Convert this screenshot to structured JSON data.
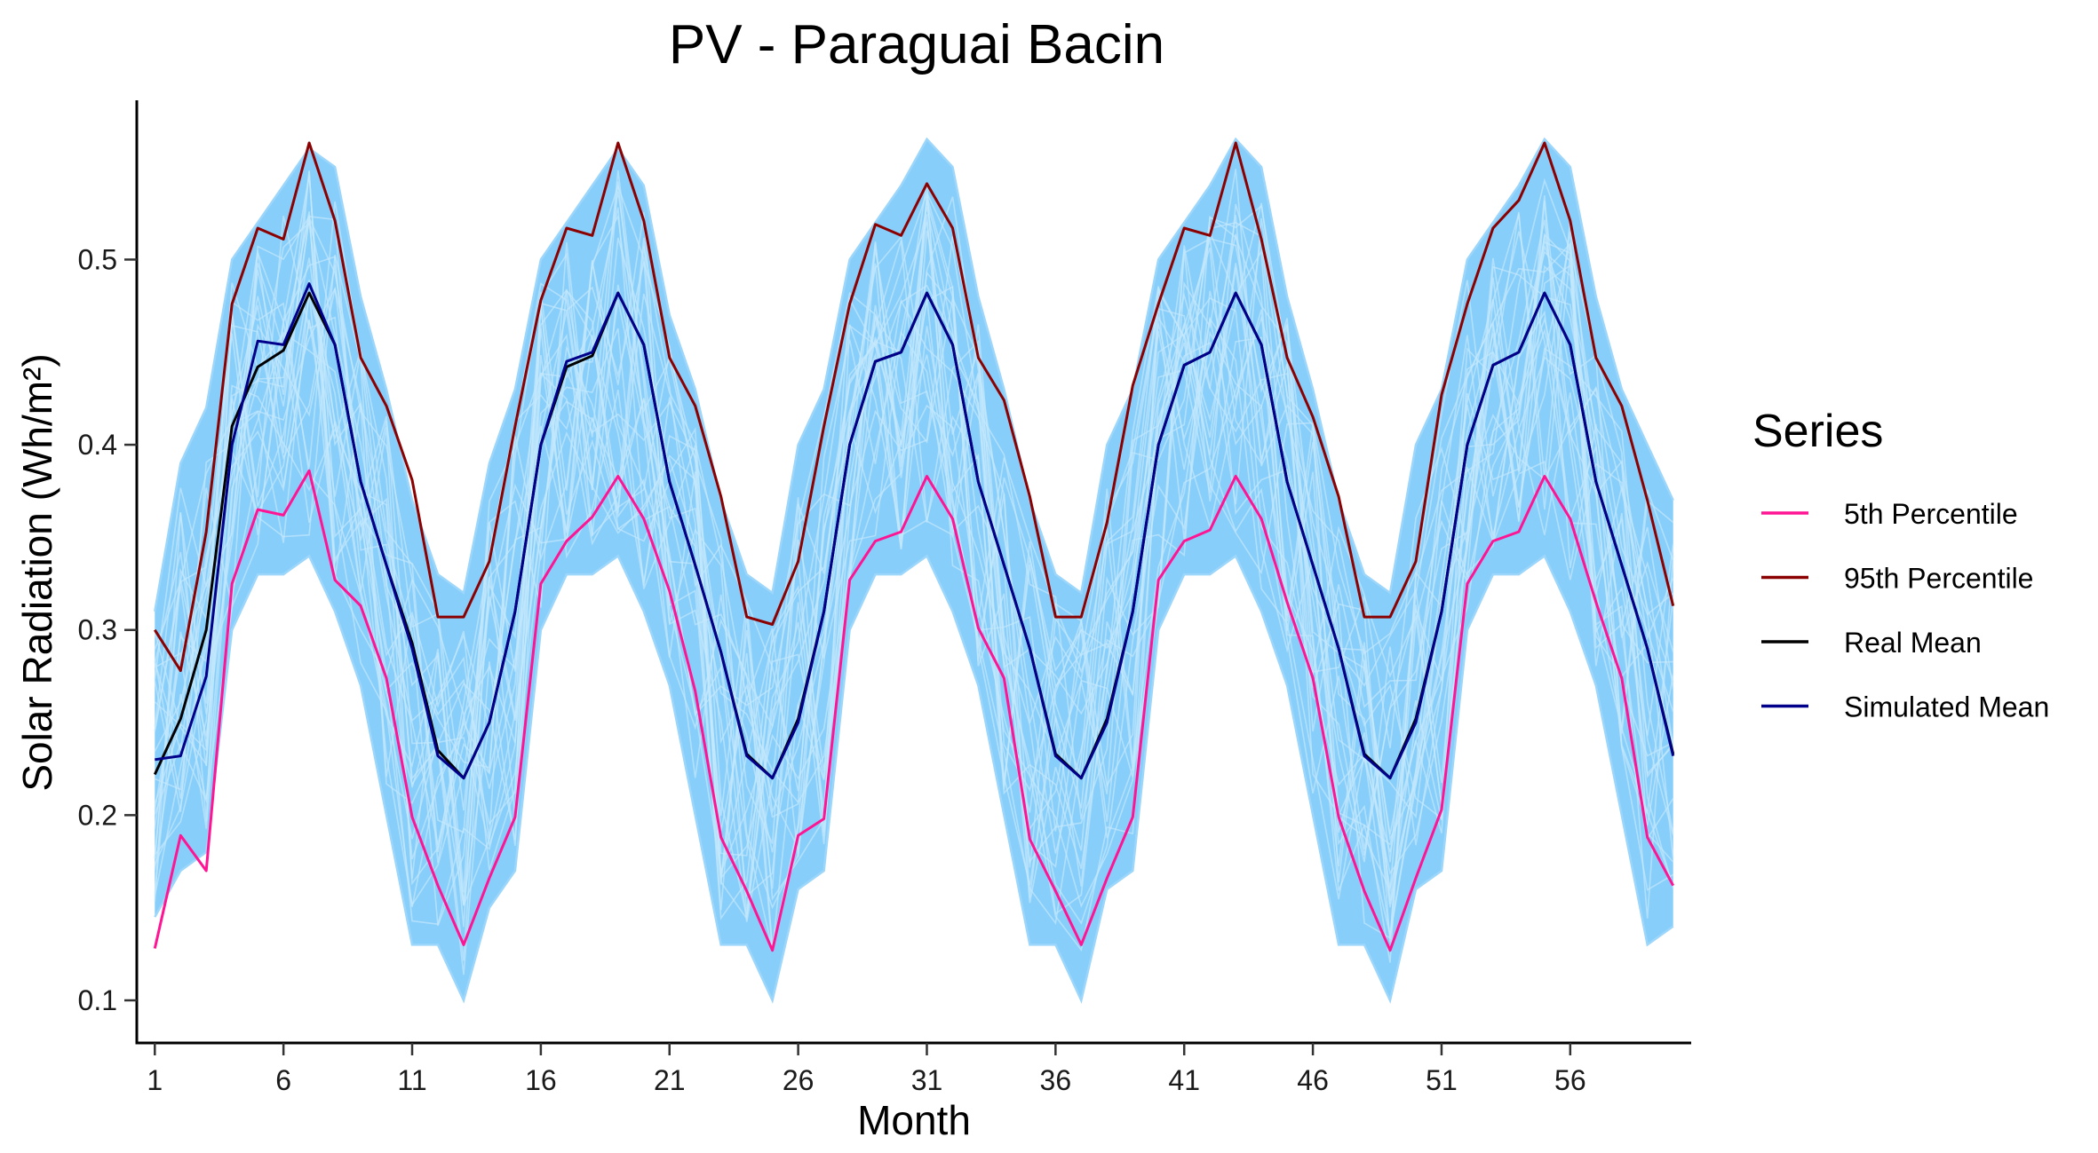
{
  "chart_data": {
    "type": "line",
    "title": "PV - Paraguai Bacin",
    "xlabel": "Month",
    "ylabel": "Solar Radiation (Wh/m²)",
    "xlim": [
      0.3,
      60.7
    ],
    "ylim": [
      0.077,
      0.586
    ],
    "x_ticks": [
      1,
      6,
      11,
      16,
      21,
      26,
      31,
      36,
      41,
      46,
      51,
      56
    ],
    "y_ticks": [
      0.1,
      0.2,
      0.3,
      0.4,
      0.5
    ],
    "y_tick_labels": [
      "0.1",
      "0.2",
      "0.3",
      "0.4",
      "0.5"
    ],
    "x_tick_labels": [
      "1",
      "6",
      "11",
      "16",
      "21",
      "26",
      "31",
      "36",
      "41",
      "46",
      "51",
      "56"
    ],
    "grid": false,
    "legend": {
      "title": "Series",
      "position": "right",
      "entries": [
        "5th Percentile",
        "95th Percentile",
        "Real Mean",
        "Simulated Mean"
      ]
    },
    "colors": {
      "simulations": "#87CEFA",
      "5th Percentile": "#FF1493",
      "95th Percentile": "#8B0000",
      "Real Mean": "#000000",
      "Simulated Mean": "#00008B"
    },
    "x": [
      1,
      2,
      3,
      4,
      5,
      6,
      7,
      8,
      9,
      10,
      11,
      12,
      13,
      14,
      15,
      16,
      17,
      18,
      19,
      20,
      21,
      22,
      23,
      24,
      25,
      26,
      27,
      28,
      29,
      30,
      31,
      32,
      33,
      34,
      35,
      36,
      37,
      38,
      39,
      40,
      41,
      42,
      43,
      44,
      45,
      46,
      47,
      48,
      49,
      50,
      51,
      52,
      53,
      54,
      55,
      56,
      57,
      58,
      59,
      60
    ],
    "simulation_band": {
      "lower": [
        0.145,
        0.17,
        0.18,
        0.3,
        0.33,
        0.33,
        0.34,
        0.31,
        0.27,
        0.2,
        0.13,
        0.13,
        0.1,
        0.15,
        0.17,
        0.3,
        0.33,
        0.33,
        0.34,
        0.31,
        0.27,
        0.2,
        0.13,
        0.13,
        0.1,
        0.16,
        0.17,
        0.3,
        0.33,
        0.33,
        0.34,
        0.31,
        0.27,
        0.2,
        0.13,
        0.13,
        0.1,
        0.16,
        0.17,
        0.3,
        0.33,
        0.33,
        0.34,
        0.31,
        0.27,
        0.2,
        0.13,
        0.13,
        0.1,
        0.16,
        0.17,
        0.3,
        0.33,
        0.33,
        0.34,
        0.31,
        0.27,
        0.2,
        0.13,
        0.14
      ],
      "upper": [
        0.31,
        0.39,
        0.42,
        0.5,
        0.52,
        0.54,
        0.56,
        0.55,
        0.48,
        0.43,
        0.37,
        0.33,
        0.32,
        0.39,
        0.43,
        0.5,
        0.52,
        0.54,
        0.56,
        0.54,
        0.47,
        0.43,
        0.37,
        0.33,
        0.32,
        0.4,
        0.43,
        0.5,
        0.52,
        0.54,
        0.565,
        0.55,
        0.48,
        0.43,
        0.37,
        0.33,
        0.32,
        0.4,
        0.43,
        0.5,
        0.52,
        0.54,
        0.565,
        0.55,
        0.48,
        0.43,
        0.37,
        0.33,
        0.32,
        0.4,
        0.43,
        0.5,
        0.52,
        0.54,
        0.565,
        0.55,
        0.48,
        0.43,
        0.4,
        0.37
      ]
    },
    "series": [
      {
        "name": "5th Percentile",
        "values": [
          0.128,
          0.189,
          0.17,
          0.325,
          0.365,
          0.362,
          0.386,
          0.327,
          0.313,
          0.274,
          0.199,
          0.162,
          0.13,
          0.166,
          0.199,
          0.325,
          0.348,
          0.361,
          0.383,
          0.36,
          0.321,
          0.267,
          0.188,
          0.159,
          0.127,
          0.189,
          0.198,
          0.327,
          0.348,
          0.353,
          0.383,
          0.36,
          0.301,
          0.274,
          0.187,
          0.159,
          0.13,
          0.166,
          0.199,
          0.327,
          0.348,
          0.354,
          0.383,
          0.36,
          0.315,
          0.274,
          0.199,
          0.159,
          0.127,
          0.166,
          0.203,
          0.325,
          0.348,
          0.353,
          0.383,
          0.36,
          0.315,
          0.274,
          0.188,
          0.162
        ]
      },
      {
        "name": "95th Percentile",
        "values": [
          0.3,
          0.278,
          0.353,
          0.476,
          0.517,
          0.511,
          0.563,
          0.521,
          0.447,
          0.421,
          0.381,
          0.307,
          0.307,
          0.337,
          0.41,
          0.478,
          0.517,
          0.513,
          0.563,
          0.521,
          0.447,
          0.421,
          0.372,
          0.307,
          0.303,
          0.337,
          0.41,
          0.476,
          0.519,
          0.513,
          0.541,
          0.517,
          0.447,
          0.424,
          0.372,
          0.307,
          0.307,
          0.358,
          0.432,
          0.476,
          0.517,
          0.513,
          0.563,
          0.511,
          0.447,
          0.415,
          0.372,
          0.307,
          0.307,
          0.337,
          0.427,
          0.476,
          0.517,
          0.532,
          0.563,
          0.521,
          0.447,
          0.421,
          0.37,
          0.313
        ]
      },
      {
        "name": "Real Mean",
        "values": [
          0.222,
          0.252,
          0.3,
          0.41,
          0.442,
          0.451,
          0.482,
          0.454,
          0.38,
          0.335,
          0.293,
          0.235,
          0.22,
          0.25,
          0.31,
          0.4,
          0.442,
          0.448,
          0.482,
          0.454,
          0.38,
          0.335,
          0.288,
          0.233,
          0.22,
          0.252,
          0.31,
          0.4,
          0.445,
          0.45,
          0.482,
          0.454,
          0.38,
          0.335,
          0.29,
          0.233,
          0.22,
          0.252,
          0.31,
          0.4,
          0.443,
          0.45,
          0.482,
          0.454,
          0.38,
          0.335,
          0.29,
          0.233,
          0.22,
          0.252,
          0.31,
          0.4,
          0.443,
          0.45,
          0.482,
          0.454,
          0.38,
          0.335,
          0.29,
          0.233
        ]
      },
      {
        "name": "Simulated Mean",
        "values": [
          0.23,
          0.232,
          0.275,
          0.4,
          0.456,
          0.454,
          0.487,
          0.454,
          0.38,
          0.335,
          0.29,
          0.232,
          0.22,
          0.25,
          0.31,
          0.4,
          0.445,
          0.45,
          0.482,
          0.454,
          0.38,
          0.335,
          0.288,
          0.232,
          0.22,
          0.25,
          0.31,
          0.4,
          0.445,
          0.45,
          0.482,
          0.454,
          0.38,
          0.335,
          0.29,
          0.232,
          0.22,
          0.25,
          0.31,
          0.4,
          0.443,
          0.45,
          0.482,
          0.454,
          0.38,
          0.335,
          0.29,
          0.232,
          0.22,
          0.25,
          0.31,
          0.4,
          0.443,
          0.45,
          0.482,
          0.454,
          0.38,
          0.335,
          0.29,
          0.232
        ]
      }
    ]
  }
}
